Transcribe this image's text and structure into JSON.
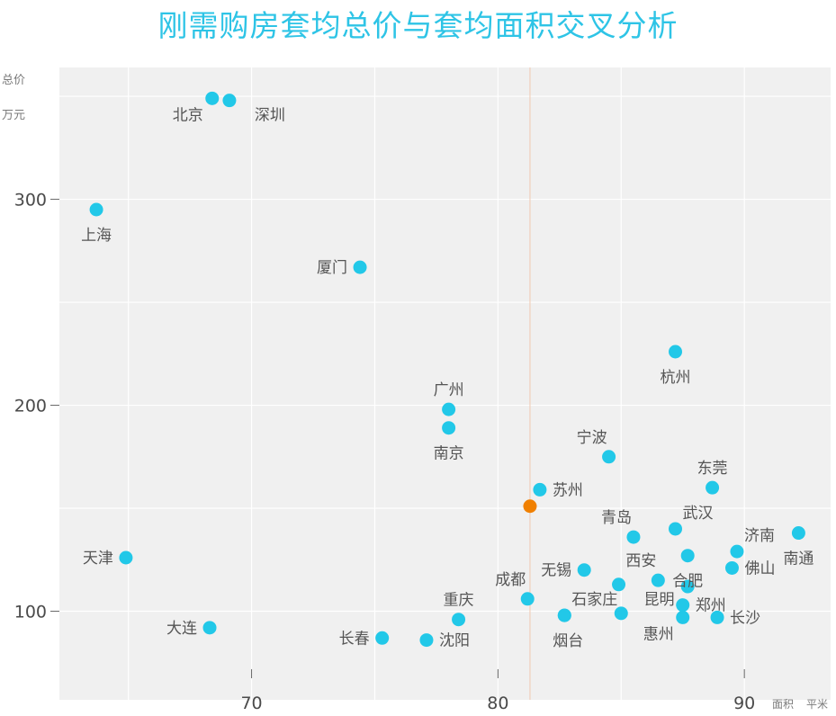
{
  "title": "刚需购房套均总价与套均面积交叉分析",
  "chart_data": {
    "type": "scatter",
    "title": "刚需购房套均总价与套均面积交叉分析",
    "ylabel": [
      "总价",
      "万元"
    ],
    "xlabel": [
      "面积",
      "平米"
    ],
    "xlim": [
      62.2,
      93.5
    ],
    "ylim": [
      57,
      364
    ],
    "xticks": [
      70,
      80,
      90
    ],
    "yticks": [
      100,
      200,
      300
    ],
    "grid": true,
    "colors": {
      "point": "#22c8e8",
      "highlight": "#f08000",
      "refline": "#f0c8b0",
      "grid": "#ffffff",
      "background": "#f0f0f0"
    },
    "reference_x": 81.3,
    "points": [
      {
        "name": "北京",
        "x": 68.4,
        "y": 349,
        "label": "below-left"
      },
      {
        "name": "深圳",
        "x": 69.1,
        "y": 348,
        "label": "below-right"
      },
      {
        "name": "上海",
        "x": 63.7,
        "y": 295,
        "label": "below"
      },
      {
        "name": "厦门",
        "x": 74.4,
        "y": 267,
        "label": "left"
      },
      {
        "name": "杭州",
        "x": 87.2,
        "y": 226,
        "label": "below"
      },
      {
        "name": "广州",
        "x": 78.0,
        "y": 198,
        "label": "above"
      },
      {
        "name": "南京",
        "x": 78.0,
        "y": 189,
        "label": "below"
      },
      {
        "name": "宁波",
        "x": 84.5,
        "y": 175,
        "label": "above-left"
      },
      {
        "name": "东莞",
        "x": 88.7,
        "y": 160,
        "label": "above"
      },
      {
        "name": "苏州",
        "x": 81.7,
        "y": 159,
        "label": "right"
      },
      {
        "name": "",
        "x": 81.3,
        "y": 151,
        "highlight": true
      },
      {
        "name": "武汉",
        "x": 87.2,
        "y": 140,
        "label": "above-right"
      },
      {
        "name": "南通",
        "x": 92.2,
        "y": 138,
        "label": "below"
      },
      {
        "name": "青岛",
        "x": 85.5,
        "y": 136,
        "label": "above-left"
      },
      {
        "name": "济南",
        "x": 89.7,
        "y": 129,
        "label": "above-right"
      },
      {
        "name": "天津",
        "x": 64.9,
        "y": 126,
        "label": "left"
      },
      {
        "name": "合肥",
        "x": 87.7,
        "y": 127,
        "label": "below"
      },
      {
        "name": "佛山",
        "x": 89.5,
        "y": 121,
        "label": "right"
      },
      {
        "name": "无锡",
        "x": 83.5,
        "y": 120,
        "label": "left"
      },
      {
        "name": "西安",
        "x": 86.5,
        "y": 115,
        "label": "above-left"
      },
      {
        "name": "昆明",
        "x": 84.9,
        "y": 113,
        "label": "below-right"
      },
      {
        "name": "",
        "x": 87.7,
        "y": 112
      },
      {
        "name": "成都",
        "x": 81.2,
        "y": 106,
        "label": "above-left"
      },
      {
        "name": "郑州",
        "x": 87.5,
        "y": 103,
        "label": "right"
      },
      {
        "name": "石家庄",
        "x": 82.7,
        "y": 98,
        "label": "above-right"
      },
      {
        "name": "",
        "x": 85.0,
        "y": 99
      },
      {
        "name": "长沙",
        "x": 88.9,
        "y": 97,
        "label": "right"
      },
      {
        "name": "惠州",
        "x": 87.5,
        "y": 97,
        "label": "below-left"
      },
      {
        "name": "重庆",
        "x": 78.4,
        "y": 96,
        "label": "above"
      },
      {
        "name": "大连",
        "x": 68.3,
        "y": 92,
        "label": "left"
      },
      {
        "name": "烟台",
        "x": 82.7,
        "y": 98,
        "label": "below-bottom"
      },
      {
        "name": "长春",
        "x": 75.3,
        "y": 87,
        "label": "left"
      },
      {
        "name": "沈阳",
        "x": 77.1,
        "y": 86,
        "label": "right"
      }
    ]
  }
}
